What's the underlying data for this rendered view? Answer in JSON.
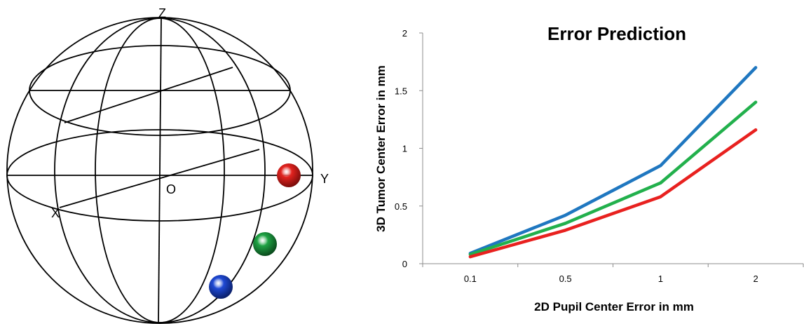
{
  "sphere": {
    "labels": {
      "z": "Z",
      "y": "Y",
      "x": "X",
      "o": "O"
    },
    "balls": [
      {
        "name": "red",
        "color": "#e3231f"
      },
      {
        "name": "green",
        "color": "#1fa344"
      },
      {
        "name": "blue",
        "color": "#1f49d4"
      }
    ]
  },
  "chart_data": {
    "type": "line",
    "title": "Error Prediction",
    "xlabel": "2D Pupil Center Error in mm",
    "ylabel": "3D Tumor Center Error in mm",
    "categories": [
      "0.1",
      "0.5",
      "1",
      "2"
    ],
    "ylim": [
      0,
      2
    ],
    "yticks": [
      "0",
      "0.5",
      "1",
      "1.5",
      "2"
    ],
    "series": [
      {
        "color": "#1f77c0",
        "values": [
          0.09,
          0.42,
          0.85,
          1.7
        ]
      },
      {
        "color": "#22b04c",
        "values": [
          0.08,
          0.35,
          0.7,
          1.4
        ]
      },
      {
        "color": "#e8211f",
        "values": [
          0.06,
          0.29,
          0.58,
          1.16
        ]
      }
    ],
    "grid": false,
    "legend": "none"
  }
}
